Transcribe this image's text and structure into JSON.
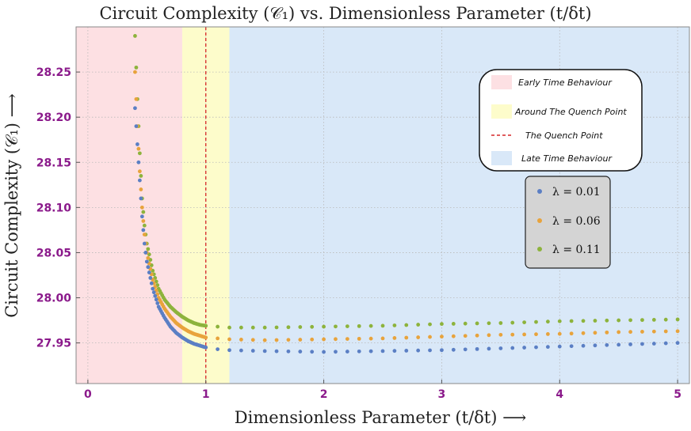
{
  "chart_data": {
    "type": "scatter",
    "title": "Circuit Complexity (𝒞₁) vs. Dimensionless Parameter (t/δt)",
    "xlabel": "Dimensionless Parameter (t/δt)  ⟶",
    "ylabel": "Circuit Complexity (𝒞₁)  ⟶",
    "xlim": [
      -0.1,
      5.1
    ],
    "ylim": [
      27.905,
      28.3
    ],
    "x_ticks": [
      0,
      1,
      2,
      3,
      4,
      5
    ],
    "y_ticks": [
      27.95,
      28.0,
      28.05,
      28.1,
      28.15,
      28.2,
      28.25
    ],
    "x_tick_labels": [
      "0",
      "1",
      "2",
      "3",
      "4",
      "5"
    ],
    "y_tick_labels": [
      "27.95",
      "28.00",
      "28.05",
      "28.10",
      "28.15",
      "28.20",
      "28.25"
    ],
    "grid": true,
    "regions": [
      {
        "label": "Early Time Behaviour",
        "x_range": [
          -0.1,
          0.8
        ],
        "color": "#fde0e3"
      },
      {
        "label": "Around The Quench Point",
        "x_range": [
          0.8,
          1.2
        ],
        "color": "#fdfccb"
      },
      {
        "label": "Late Time Behaviour",
        "x_range": [
          1.2,
          5.1
        ],
        "color": "#d9e8f8"
      }
    ],
    "quench_line": {
      "label": "The Quench Point",
      "x": 1,
      "color": "#d62728"
    },
    "region_legend_position": "upper-right",
    "series_legend_position": "right",
    "series": [
      {
        "name": "λ = 0.01",
        "color": "#5b7fc4",
        "x": [
          0.4,
          0.42,
          0.44,
          0.46,
          0.48,
          0.5,
          0.55,
          0.6,
          0.65,
          0.7,
          0.75,
          0.8,
          0.85,
          0.9,
          0.95,
          1.0,
          1.1,
          1.2,
          1.5,
          2.0,
          2.5,
          3.0,
          3.5,
          4.0,
          4.5,
          5.0
        ],
        "y": [
          28.21,
          28.17,
          28.13,
          28.09,
          28.06,
          28.04,
          28.01,
          27.99,
          27.978,
          27.968,
          27.961,
          27.956,
          27.952,
          27.949,
          27.947,
          27.945,
          27.943,
          27.942,
          27.941,
          27.94,
          27.941,
          27.942,
          27.944,
          27.946,
          27.948,
          27.95
        ]
      },
      {
        "name": "λ = 0.06",
        "color": "#e8a33c",
        "x": [
          0.4,
          0.42,
          0.44,
          0.46,
          0.48,
          0.5,
          0.55,
          0.6,
          0.65,
          0.7,
          0.75,
          0.8,
          0.85,
          0.9,
          0.95,
          1.0,
          1.1,
          1.2,
          1.5,
          2.0,
          2.5,
          3.0,
          3.5,
          4.0,
          4.5,
          5.0
        ],
        "y": [
          28.25,
          28.19,
          28.14,
          28.1,
          28.07,
          28.05,
          28.02,
          28.0,
          27.988,
          27.979,
          27.972,
          27.967,
          27.963,
          27.96,
          27.958,
          27.956,
          27.955,
          27.954,
          27.953,
          27.954,
          27.955,
          27.957,
          27.959,
          27.96,
          27.962,
          27.963
        ]
      },
      {
        "name": "λ = 0.11",
        "color": "#8db33c",
        "x": [
          0.4,
          0.42,
          0.44,
          0.46,
          0.48,
          0.5,
          0.55,
          0.6,
          0.65,
          0.7,
          0.75,
          0.8,
          0.85,
          0.9,
          0.95,
          1.0,
          1.1,
          1.2,
          1.5,
          2.0,
          2.5,
          3.0,
          3.5,
          4.0,
          4.5,
          5.0
        ],
        "y": [
          28.29,
          28.22,
          28.16,
          28.11,
          28.08,
          28.06,
          28.03,
          28.01,
          27.998,
          27.99,
          27.984,
          27.979,
          27.975,
          27.972,
          27.97,
          27.969,
          27.968,
          27.967,
          27.967,
          27.968,
          27.969,
          27.971,
          27.972,
          27.974,
          27.975,
          27.976
        ]
      }
    ]
  }
}
